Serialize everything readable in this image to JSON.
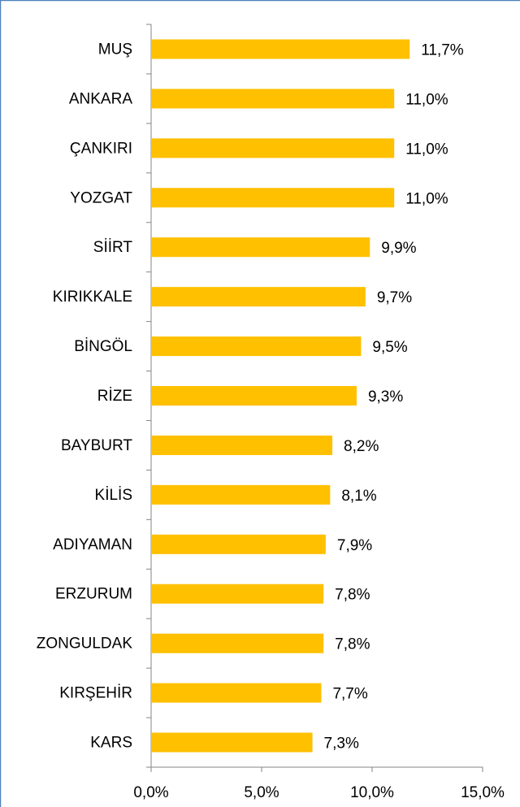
{
  "chart_data": {
    "type": "hbar",
    "categories": [
      "MUŞ",
      "ANKARA",
      "ÇANKIRI",
      "YOZGAT",
      "SİİRT",
      "KIRIKKALE",
      "BİNGÖL",
      "RİZE",
      "BAYBURT",
      "KİLİS",
      "ADIYAMAN",
      "ERZURUM",
      "ZONGULDAK",
      "KIRŞEHİR",
      "KARS"
    ],
    "values": [
      11.7,
      11.0,
      11.0,
      11.0,
      9.9,
      9.7,
      9.5,
      9.3,
      8.2,
      8.1,
      7.9,
      7.8,
      7.8,
      7.7,
      7.3
    ],
    "value_labels": [
      "11,7%",
      "11,0%",
      "11,0%",
      "11,0%",
      "9,9%",
      "9,7%",
      "9,5%",
      "9,3%",
      "8,2%",
      "8,1%",
      "7,9%",
      "7,8%",
      "7,8%",
      "7,7%",
      "7,3%"
    ],
    "color": "#ffc000",
    "xlim": [
      0,
      15
    ],
    "xticks": [
      {
        "value": 0,
        "label": "0,0%"
      },
      {
        "value": 5,
        "label": "5,0%"
      },
      {
        "value": 10,
        "label": "10,0%"
      },
      {
        "value": 15,
        "label": "15,0%"
      }
    ],
    "grid": false
  }
}
